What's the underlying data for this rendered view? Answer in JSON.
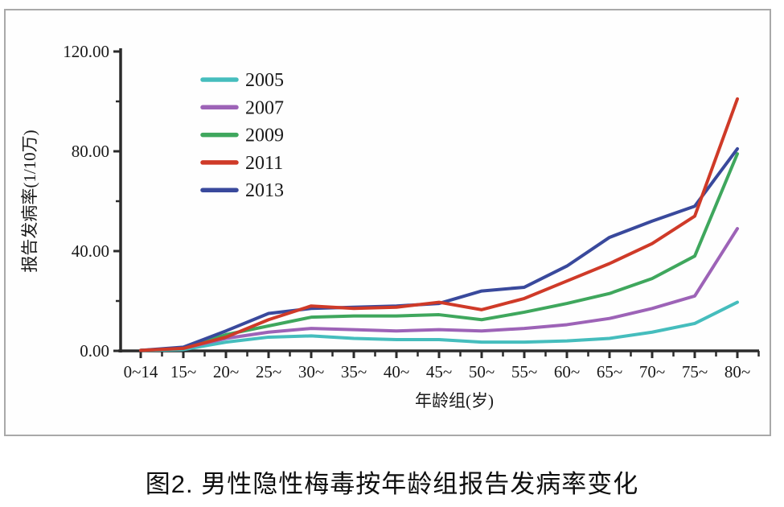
{
  "figure": {
    "caption": "图2. 男性隐性梅毒按年龄组报告发病率变化"
  },
  "chart_data": {
    "type": "line",
    "title": "",
    "xlabel": "年龄组(岁)",
    "ylabel": "报告发病率(1/10万)",
    "ylim": [
      0,
      120
    ],
    "grid": false,
    "legend_position": "upper left inside plot",
    "yticks": [
      {
        "value": 0,
        "label": "0.00"
      },
      {
        "value": 40,
        "label": "40.00"
      },
      {
        "value": 80,
        "label": "80.00"
      },
      {
        "value": 120,
        "label": "120.00"
      }
    ],
    "yminor_ticks": [
      20,
      60,
      100
    ],
    "categories": [
      "0~14",
      "15~",
      "20~",
      "25~",
      "30~",
      "35~",
      "40~",
      "45~",
      "50~",
      "55~",
      "60~",
      "65~",
      "70~",
      "75~",
      "80~"
    ],
    "series": [
      {
        "name": "2005",
        "color": "#45bdbd",
        "values": [
          0.2,
          0.5,
          3.5,
          5.5,
          6,
          5,
          4.5,
          4.5,
          3.5,
          3.5,
          4,
          5,
          7.5,
          11,
          19.5
        ]
      },
      {
        "name": "2007",
        "color": "#9d63b7",
        "values": [
          0.2,
          1,
          5,
          7.5,
          9,
          8.5,
          8,
          8.5,
          8,
          9,
          10.5,
          13,
          17,
          22,
          49
        ]
      },
      {
        "name": "2009",
        "color": "#3fa75d",
        "values": [
          0.2,
          1,
          6.5,
          10,
          13.5,
          14,
          14,
          14.5,
          12.5,
          15.5,
          19,
          23,
          29,
          38,
          79
        ]
      },
      {
        "name": "2011",
        "color": "#cf3a28",
        "values": [
          0.2,
          1,
          5.5,
          12.5,
          18,
          17,
          17.5,
          19.5,
          16.5,
          21,
          28,
          35,
          43,
          54,
          101
        ]
      },
      {
        "name": "2013",
        "color": "#39499c",
        "values": [
          0.2,
          1.5,
          8,
          15,
          17,
          17.5,
          18,
          19,
          24,
          25.5,
          34,
          45.5,
          52,
          58,
          81
        ]
      }
    ]
  }
}
